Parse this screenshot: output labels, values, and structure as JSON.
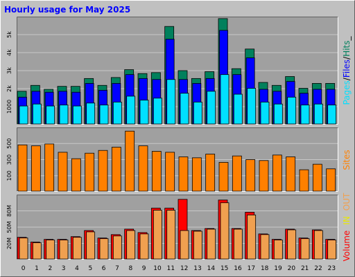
{
  "title": "Hourly usage for May 2025",
  "colors": {
    "background": "#c0c0c0",
    "panel": "#a0a0a0",
    "title": "#0000ff",
    "hits": "#00805c",
    "files": "#0000ff",
    "pages": "#00e0ff",
    "sites": "#ff8000",
    "volume": "#ff0000",
    "in": "#e8e800",
    "out": "#f0a050"
  },
  "chart_data": [
    {
      "type": "bar",
      "name": "hits-files-pages",
      "categories": [
        "0",
        "1",
        "2",
        "3",
        "4",
        "5",
        "6",
        "7",
        "8",
        "9",
        "10",
        "11",
        "12",
        "13",
        "14",
        "15",
        "16",
        "17",
        "18",
        "19",
        "20",
        "21",
        "22",
        "23"
      ],
      "y_ticks": [
        "1000",
        "2k",
        "3k",
        "4k",
        "5k"
      ],
      "ylim": [
        0,
        5500
      ],
      "ylabel_parts": [
        "Pages",
        "/",
        "Files",
        "/",
        "Hits",
        "_"
      ],
      "series": [
        {
          "name": "Hits",
          "values": [
            1700,
            2000,
            1800,
            1950,
            1950,
            2350,
            2000,
            2400,
            2800,
            2600,
            2650,
            5000,
            2750,
            2350,
            2700,
            5400,
            2850,
            3850,
            2150,
            2000,
            2450,
            1850,
            2100,
            2100
          ]
        },
        {
          "name": "Files",
          "values": [
            1400,
            1700,
            1650,
            1700,
            1650,
            2100,
            1750,
            2100,
            2550,
            2350,
            2300,
            4350,
            2300,
            2100,
            2350,
            4800,
            2550,
            3400,
            1800,
            1700,
            2200,
            1600,
            1800,
            1800
          ]
        },
        {
          "name": "Pages",
          "values": [
            950,
            1050,
            950,
            1000,
            950,
            1100,
            1000,
            1150,
            1450,
            1250,
            1350,
            2300,
            1600,
            1150,
            1700,
            2550,
            1550,
            1850,
            1150,
            1050,
            1400,
            1000,
            1050,
            1000
          ]
        }
      ]
    },
    {
      "type": "bar",
      "name": "sites",
      "categories": [
        "0",
        "1",
        "2",
        "3",
        "4",
        "5",
        "6",
        "7",
        "8",
        "9",
        "10",
        "11",
        "12",
        "13",
        "14",
        "15",
        "16",
        "17",
        "18",
        "19",
        "20",
        "21",
        "22",
        "23"
      ],
      "y_ticks": [
        "100",
        "300",
        "500"
      ],
      "ylim": [
        0,
        700
      ],
      "ylabel": "Sites",
      "series": [
        {
          "name": "Sites",
          "values": [
            510,
            500,
            520,
            430,
            360,
            420,
            450,
            485,
            660,
            500,
            440,
            430,
            380,
            370,
            410,
            320,
            390,
            350,
            340,
            400,
            380,
            240,
            300,
            250
          ]
        }
      ]
    },
    {
      "type": "bar",
      "name": "volume",
      "categories": [
        "0",
        "1",
        "2",
        "3",
        "4",
        "5",
        "6",
        "7",
        "8",
        "9",
        "10",
        "11",
        "12",
        "13",
        "14",
        "15",
        "16",
        "17",
        "18",
        "19",
        "20",
        "21",
        "22",
        "23"
      ],
      "y_ticks": [
        "20M",
        "50M",
        "80M"
      ],
      "ylim": [
        0,
        96
      ],
      "ylabel_parts": [
        "Volume",
        "IN",
        "OUT"
      ],
      "series": [
        {
          "name": "Volume",
          "values": [
            33,
            26,
            30,
            30,
            34,
            43,
            32,
            37,
            45,
            40,
            76,
            76,
            89,
            43,
            46,
            88,
            46,
            70,
            38,
            30,
            45,
            32,
            44,
            30
          ]
        },
        {
          "name": "IN",
          "values": [
            0,
            0,
            0,
            0,
            0,
            0,
            0,
            0,
            0,
            0,
            0,
            0,
            0,
            0,
            0,
            0,
            0,
            0,
            0,
            0,
            0,
            0,
            0,
            0
          ]
        },
        {
          "name": "OUT",
          "values": [
            32,
            25,
            29,
            29,
            33,
            41,
            31,
            35,
            43,
            38,
            73,
            73,
            43,
            42,
            45,
            84,
            45,
            66,
            37,
            29,
            44,
            31,
            43,
            29
          ]
        }
      ]
    }
  ]
}
